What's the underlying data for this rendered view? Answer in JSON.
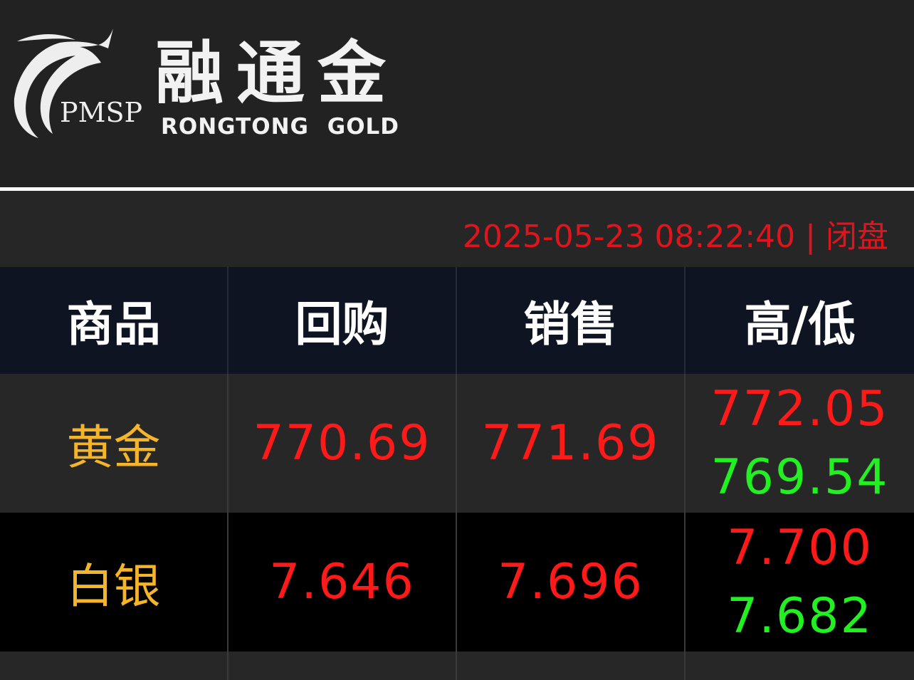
{
  "header": {
    "logo_mark_text": "PMSP",
    "brand_cn": "融通金",
    "brand_en": "RONGTONG GOLD"
  },
  "status": {
    "datetime": "2025-05-23 08:22:40",
    "separator": "|",
    "market_state": "闭盘"
  },
  "colors": {
    "status": "#e0141c",
    "price": "#ff1a1a",
    "low": "#22f022",
    "commodity": "#f5b52a"
  },
  "table": {
    "headers": [
      "商品",
      "回购",
      "销售",
      "高/低"
    ],
    "rows": [
      {
        "name": "黄金",
        "buyback": "770.69",
        "sell": "771.69",
        "high": "772.05",
        "low": "769.54"
      },
      {
        "name": "白银",
        "buyback": "7.646",
        "sell": "7.696",
        "high": "7.700",
        "low": "7.682"
      }
    ]
  }
}
